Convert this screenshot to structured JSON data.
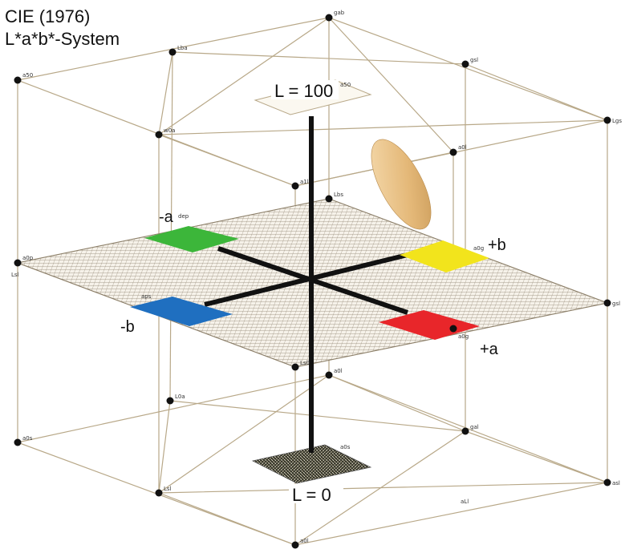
{
  "title": {
    "line1": "CIE (1976)",
    "line2": "L*a*b*-System"
  },
  "axis_labels": {
    "minus_a": "-a",
    "plus_a": "+a",
    "minus_b": "-b",
    "plus_b": "+b",
    "l_top": "L = 100",
    "l_bottom": "L = 0"
  },
  "colors": {
    "green": "#3cb63a",
    "red": "#e8262a",
    "yellow": "#f2e41c",
    "blue": "#1f6fc0",
    "ellipsoid": "#e8c48a",
    "cube_edge": "#b8a888",
    "axis": "#111111"
  },
  "vertex_labels": {
    "v1": "gab",
    "v2": "Lba",
    "v3": "gsl",
    "v4": "a50",
    "v5": "a50",
    "v6": "Lgs",
    "v7": "w0a",
    "v8": "a0l",
    "v9": "a1l",
    "v10": "Lbs",
    "v11": "dep",
    "v12": "a0p",
    "v13": "a0g",
    "v14": "gsl",
    "v15": "aps",
    "v16": "a0g",
    "v17": "Ls0",
    "v18": "a0l",
    "v19": "L0a",
    "v20": "gal",
    "v21": "a0s",
    "v22": "a0s",
    "v23": "asl",
    "v24": "Lsl",
    "v25": "aLl",
    "v26": "a0l",
    "v27": "Lsl"
  }
}
